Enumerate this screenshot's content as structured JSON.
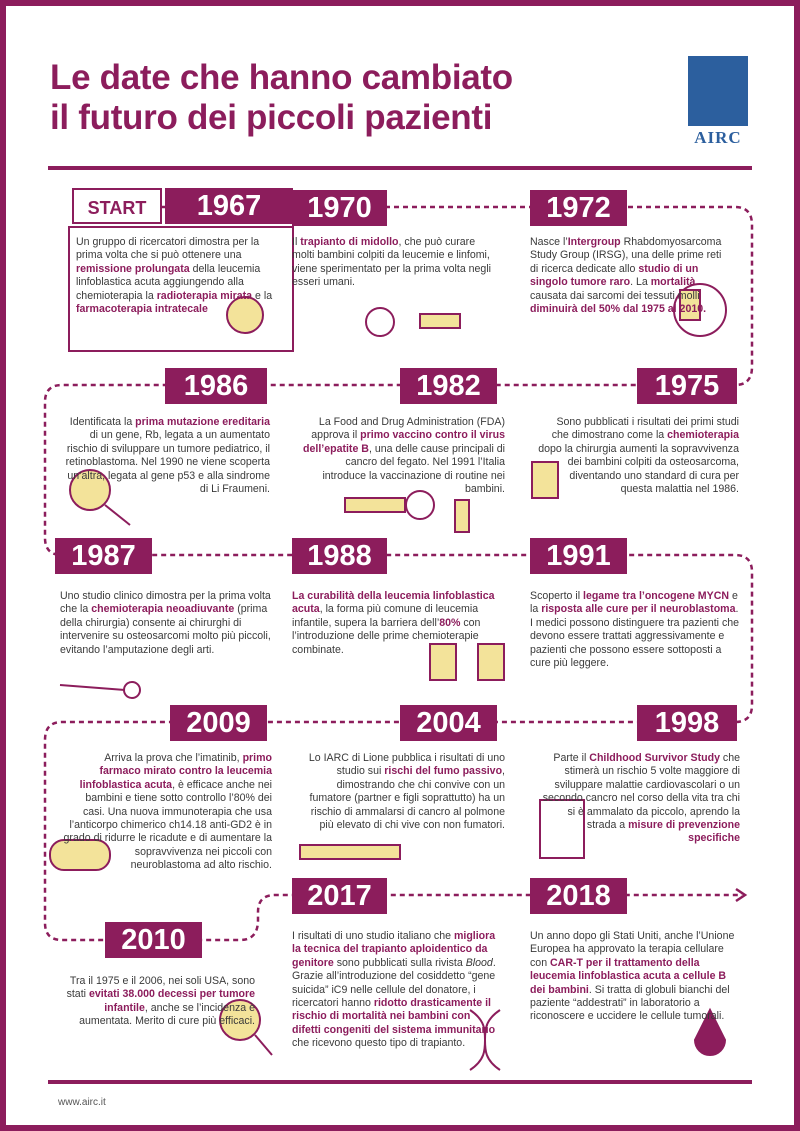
{
  "header": {
    "title_lines": [
      "Le date che hanno cambiato",
      "il futuro dei piccoli pazienti"
    ],
    "logo": "AIRC"
  },
  "start": "START",
  "entries": [
    {
      "year": "1967",
      "text": [
        {
          "text": "Un gruppo di ricercatori dimostra per la prima volta che si può ottenere una "
        },
        {
          "bold": "remissione prolungata"
        },
        {
          "text": " della leucemia linfoblastica acuta aggiungendo alla chemioterapia la "
        },
        {
          "bold": "radioterapia mirata"
        },
        {
          "text": " e la "
        },
        {
          "bold": "farmacoterapia intratecale"
        }
      ]
    },
    {
      "year": "1970",
      "text": [
        {
          "text": "Il "
        },
        {
          "bold": "trapianto di midollo"
        },
        {
          "text": ", che può curare molti bambini colpiti da leucemie e linfomi, viene sperimentato per la prima volta negli esseri umani."
        }
      ]
    },
    {
      "year": "1972",
      "text": [
        {
          "text": "Nasce l’"
        },
        {
          "bold": "Intergroup"
        },
        {
          "text": " Rhabdomyosarcoma Study Group (IRSG), una delle prime reti di ricerca dedicate allo "
        },
        {
          "bold": "studio di un singolo tumore raro"
        },
        {
          "text": ". La "
        },
        {
          "bold": "mortalità"
        },
        {
          "text": " causata dai sarcomi dei tessuti molli "
        },
        {
          "bold": "diminuirà del 50% dal 1975 al 2010."
        }
      ]
    },
    {
      "year": "1986",
      "text": [
        {
          "text": "Identificata la "
        },
        {
          "bold": "prima mutazione ereditaria"
        },
        {
          "text": " di un gene, Rb, legata a un aumentato rischio di sviluppare un tumore pediatrico, il retinoblastoma. Nel 1990 ne viene scoperta un’altra, legata al gene p53 e alla sindrome di Li Fraumeni."
        }
      ]
    },
    {
      "year": "1982",
      "text": [
        {
          "text": "La Food and Drug Administration (FDA) approva il "
        },
        {
          "bold": "primo vaccino contro il virus dell’epatite B"
        },
        {
          "text": ", una delle cause principali di cancro del fegato. Nel 1991 l’Italia introduce la vaccinazione di routine nei bambini."
        }
      ]
    },
    {
      "year": "1975",
      "text": [
        {
          "text": "Sono pubblicati i risultati dei primi studi che dimostrano come la "
        },
        {
          "bold": "chemioterapia"
        },
        {
          "text": " dopo la chirurgia aumenti la sopravvivenza dei bambini colpiti da osteosarcoma, diventando uno standard di cura  per questa malattia nel 1986."
        }
      ]
    },
    {
      "year": "1987",
      "text": [
        {
          "text": "Uno studio clinico dimostra per la prima volta che la "
        },
        {
          "bold": "chemioterapia neoadiuvante"
        },
        {
          "text": " (prima della chirurgia) consente ai chirurghi di intervenire su osteosarcomi molto più piccoli, evitando l’amputazione degli arti."
        }
      ]
    },
    {
      "year": "1988",
      "text": [
        {
          "bold": "La curabilità della leucemia linfoblastica acuta"
        },
        {
          "text": ", la forma più comune di leucemia infantile, supera la barriera dell’"
        },
        {
          "bold": "80%"
        },
        {
          "text": " con l’introduzione delle prime chemioterapie combinate."
        }
      ]
    },
    {
      "year": "1991",
      "text": [
        {
          "text": "Scoperto il "
        },
        {
          "bold": "legame tra l’oncogene MYCN"
        },
        {
          "text": " e la "
        },
        {
          "bold": "risposta alle cure per il neuroblastoma"
        },
        {
          "text": ". I medici possono distinguere tra pazienti che devono essere trattati aggressivamente e pazienti che possono essere sottoposti a cure più leggere."
        }
      ]
    },
    {
      "year": "2009",
      "text": [
        {
          "text": "Arriva la prova che l’imatinib, "
        },
        {
          "bold": "primo farmaco mirato contro la leucemia linfoblastica acuta"
        },
        {
          "text": ", è efficace anche nei bambini e tiene sotto controllo l’80% dei casi. Una nuova immunoterapia che usa l’anticorpo chimerico ch14.18 anti-GD2 è in grado di ridurre le ricadute e di aumentare la sopravvivenza nei piccoli con neuroblastoma ad alto rischio."
        }
      ]
    },
    {
      "year": "2004",
      "text": [
        {
          "text": "Lo IARC di Lione pubblica i risultati di uno studio sui "
        },
        {
          "bold": "rischi del fumo passivo"
        },
        {
          "text": ", dimostrando che chi convive con un fumatore (partner e figli soprattutto) ha un rischio di ammalarsi di cancro al polmone più elevato di chi vive con non fumatori."
        }
      ]
    },
    {
      "year": "1998",
      "text": [
        {
          "text": "Parte il "
        },
        {
          "bold": "Childhood Survivor Study"
        },
        {
          "text": " che stimerà un rischio 5 volte maggiore di sviluppare malattie cardiovascolari o un secondo cancro nel corso della vita tra chi si è ammalato da piccolo, aprendo la strada a "
        },
        {
          "bold": "misure di prevenzione specifiche"
        }
      ]
    },
    {
      "year": "2017",
      "text": [
        {
          "text": "I risultati di uno studio italiano che "
        },
        {
          "bold": "migliora la tecnica del trapianto aploidentico da genitore"
        },
        {
          "text": " sono pubblicati sulla rivista "
        },
        {
          "italic": "Blood"
        },
        {
          "text": ". Grazie all’introduzione del cosiddetto “gene suicida” iC9 nelle cellule del donatore, i ricercatori hanno "
        },
        {
          "bold": "ridotto drasticamente il rischio di mortalità nei bambini con difetti congeniti del sistema immunitario"
        },
        {
          "text": " che ricevono questo tipo di trapianto."
        }
      ]
    },
    {
      "year": "2018",
      "text": [
        {
          "text": "Un anno dopo gli Stati Uniti, anche l’Unione Europea ha approvato la terapia cellulare con "
        },
        {
          "bold": "CAR-T per il trattamento della leucemia linfoblastica acuta a cellule B dei bambini"
        },
        {
          "text": ". Si tratta di globuli bianchi del paziente “addestrati” in laboratorio a riconoscere e uccidere le cellule tumorali."
        }
      ]
    },
    {
      "year": "2010",
      "text": [
        {
          "text": "Tra il 1975 e il 2006, nei soli USA, sono stati "
        },
        {
          "bold": "evitati 38.000 decessi per tumore infantile"
        },
        {
          "text": ", anche se l’incidenza è aumentata. Merito di cure più efficaci."
        }
      ]
    }
  ],
  "footer": "www.airc.it"
}
